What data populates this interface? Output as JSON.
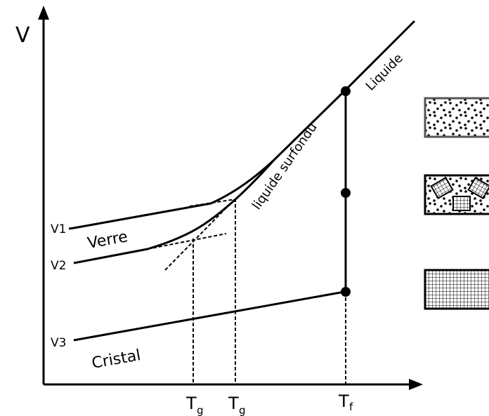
{
  "axes": {
    "y_label": "V",
    "x_labels": [
      {
        "main": "T",
        "sub": "g"
      },
      {
        "main": "T",
        "sub": "g"
      },
      {
        "main": "T",
        "sub": "f"
      }
    ]
  },
  "levels": [
    "V1",
    "V2",
    "V3"
  ],
  "curve_labels": {
    "glass": "Verre",
    "crystal": "Cristal",
    "supercooled": "liquide surfondu",
    "liquid": "Liquide"
  }
}
